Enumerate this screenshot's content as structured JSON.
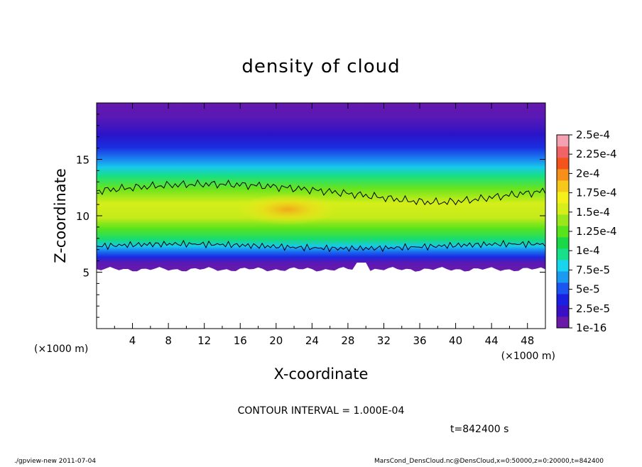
{
  "chart_data": {
    "type": "heatmap",
    "title": "density of cloud",
    "xlabel": "X-coordinate",
    "ylabel": "Z-coordinate",
    "x_unit_left": "(×1000 m)",
    "x_unit_right": "(×1000 m)",
    "xlim": [
      0,
      50
    ],
    "ylim": [
      0,
      20
    ],
    "x_ticks": [
      4,
      8,
      12,
      16,
      20,
      24,
      28,
      32,
      36,
      40,
      44,
      48
    ],
    "y_ticks": [
      5,
      10,
      15
    ],
    "colorbar": {
      "labels": [
        "1e-16",
        "2.5e-5",
        "5e-5",
        "7.5e-5",
        "1e-4",
        "1.25e-4",
        "1.5e-4",
        "1.75e-4",
        "2e-4",
        "2.25e-4",
        "2.5e-4"
      ],
      "colors": [
        "#6a1aa8",
        "#3a10c6",
        "#1a20e0",
        "#1a55f0",
        "#1a9af0",
        "#18d4ec",
        "#18e08a",
        "#1ad848",
        "#58e41c",
        "#9ae81c",
        "#d6ee1a",
        "#f4f01a",
        "#f6c81a",
        "#f6901a",
        "#f2541a",
        "#f06468",
        "#f4a2b2"
      ]
    },
    "contour_interval": "CONTOUR INTERVAL = 1.000E-04",
    "contour_level": 0.0001,
    "cloud_layer": {
      "base_km": 5.5,
      "top_km_min": 13.5,
      "top_km_max": 19,
      "peak_density_km": 10.5
    }
  },
  "footer": {
    "time": "t=842400 s",
    "program": "./gpview-new   2011-07-04",
    "source": "MarsCond_DensCloud.nc@DensCloud,x=0:50000,z=0:20000,t=842400"
  }
}
